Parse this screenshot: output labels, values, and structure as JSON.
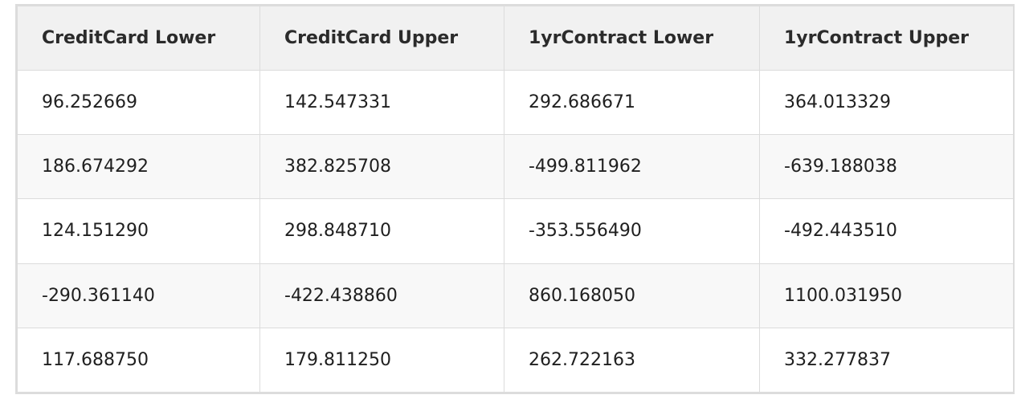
{
  "table": {
    "headers": [
      "CreditCard Lower",
      "CreditCard Upper",
      "1yrContract Lower",
      "1yrContract Upper"
    ],
    "rows": [
      [
        "96.252669",
        "142.547331",
        "292.686671",
        "364.013329"
      ],
      [
        "186.674292",
        "382.825708",
        "-499.811962",
        "-639.188038"
      ],
      [
        "124.151290",
        "298.848710",
        "-353.556490",
        "-492.443510"
      ],
      [
        "-290.361140",
        "-422.438860",
        "860.168050",
        "1100.031950"
      ],
      [
        "117.688750",
        "179.811250",
        "262.722163",
        "332.277837"
      ]
    ]
  },
  "colors": {
    "header_background": "#f1f1f1",
    "border": "#dcdcdc",
    "row_alt_background": "#f8f8f8"
  }
}
